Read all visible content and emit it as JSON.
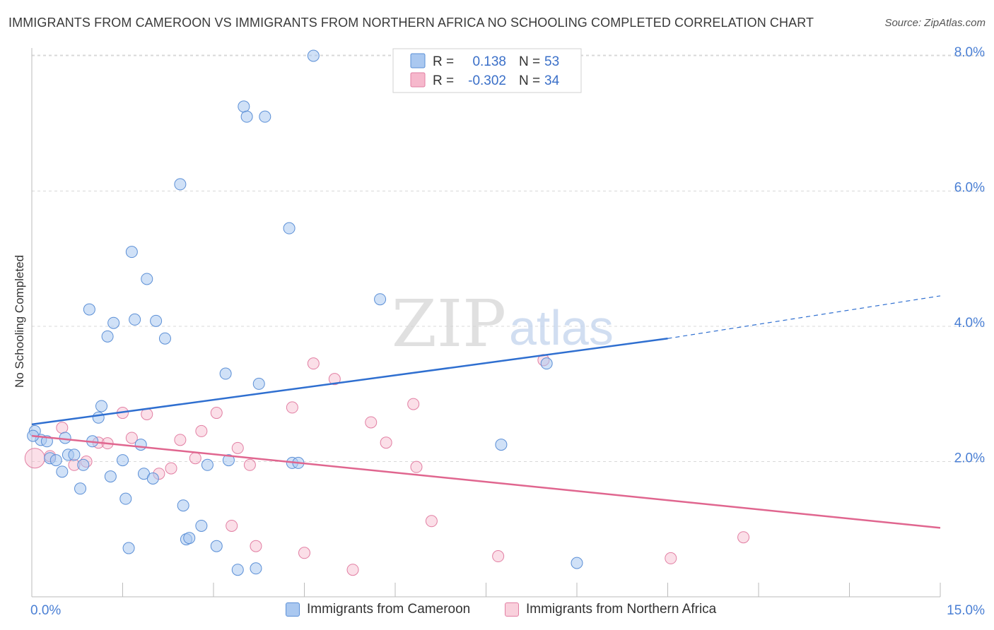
{
  "title": "IMMIGRANTS FROM CAMEROON VS IMMIGRANTS FROM NORTHERN AFRICA NO SCHOOLING COMPLETED CORRELATION CHART",
  "source": "Source: ZipAtlas.com",
  "watermark": {
    "zip": "ZIP",
    "atlas": "atlas"
  },
  "colors": {
    "blue_fill": "#aac8f0",
    "blue_stroke": "#5b8fd6",
    "blue_line": "#2f6fd0",
    "pink_fill": "#f6b8cc",
    "pink_stroke": "#e27fa3",
    "pink_line": "#e0668f",
    "axis_text": "#4a7fd4",
    "grid": "#d8d8d8"
  },
  "legend": {
    "rows": [
      {
        "r_label": "R =",
        "r_value": "0.138",
        "n_label": "N =",
        "n_value": "53"
      },
      {
        "r_label": "R =",
        "r_value": "-0.302",
        "n_label": "N =",
        "n_value": "34"
      }
    ]
  },
  "chart_data": {
    "type": "scatter",
    "title": "IMMIGRANTS FROM CAMEROON VS IMMIGRANTS FROM NORTHERN AFRICA NO SCHOOLING COMPLETED CORRELATION CHART",
    "xlabel": "",
    "ylabel": "No Schooling Completed",
    "xlim": [
      0,
      15
    ],
    "ylim": [
      0,
      8.3
    ],
    "x_tick_labels": [
      "0.0%",
      "15.0%"
    ],
    "y_ticks": [
      2,
      4,
      6,
      8
    ],
    "y_tick_labels": [
      "2.0%",
      "4.0%",
      "6.0%",
      "8.0%"
    ],
    "grid": true,
    "legend_position": "top-center",
    "series": [
      {
        "name": "Immigrants from Cameroon",
        "color": "#aac8f0",
        "points": [
          [
            0.05,
            2.45
          ],
          [
            0.15,
            2.32
          ],
          [
            0.25,
            2.3
          ],
          [
            0.3,
            2.05
          ],
          [
            0.4,
            2.02
          ],
          [
            0.5,
            1.85
          ],
          [
            0.55,
            2.35
          ],
          [
            0.6,
            2.1
          ],
          [
            0.7,
            2.1
          ],
          [
            0.8,
            1.6
          ],
          [
            0.85,
            1.95
          ],
          [
            0.95,
            4.25
          ],
          [
            1.0,
            2.3
          ],
          [
            1.1,
            2.65
          ],
          [
            1.15,
            2.82
          ],
          [
            1.25,
            3.85
          ],
          [
            1.3,
            1.78
          ],
          [
            1.35,
            4.05
          ],
          [
            1.5,
            2.02
          ],
          [
            1.55,
            1.45
          ],
          [
            1.6,
            0.72
          ],
          [
            1.65,
            5.1
          ],
          [
            1.7,
            4.1
          ],
          [
            1.8,
            2.25
          ],
          [
            1.85,
            1.82
          ],
          [
            1.9,
            4.7
          ],
          [
            2.0,
            1.75
          ],
          [
            2.05,
            4.08
          ],
          [
            2.2,
            3.82
          ],
          [
            2.45,
            6.1
          ],
          [
            2.5,
            1.35
          ],
          [
            2.55,
            0.85
          ],
          [
            2.6,
            0.87
          ],
          [
            2.8,
            1.05
          ],
          [
            2.9,
            1.95
          ],
          [
            3.05,
            0.75
          ],
          [
            3.2,
            3.3
          ],
          [
            3.25,
            2.02
          ],
          [
            3.4,
            0.4
          ],
          [
            3.5,
            7.25
          ],
          [
            3.55,
            7.1
          ],
          [
            3.7,
            0.42
          ],
          [
            3.75,
            3.15
          ],
          [
            3.85,
            7.1
          ],
          [
            4.25,
            5.45
          ],
          [
            4.3,
            1.98
          ],
          [
            4.4,
            1.98
          ],
          [
            4.65,
            8.0
          ],
          [
            5.75,
            4.4
          ],
          [
            7.75,
            2.25
          ],
          [
            8.5,
            3.45
          ],
          [
            9.0,
            0.5
          ],
          [
            0.02,
            2.38
          ]
        ],
        "trend": {
          "x0": 0,
          "y0": 2.55,
          "x1": 10.5,
          "y1": 3.82,
          "dashed_to_x": 15,
          "dashed_to_y": 4.45
        }
      },
      {
        "name": "Immigrants from Northern Africa",
        "color": "#f6b8cc",
        "points": [
          [
            0.05,
            2.05
          ],
          [
            0.3,
            2.08
          ],
          [
            0.5,
            2.5
          ],
          [
            0.7,
            1.95
          ],
          [
            0.9,
            2.0
          ],
          [
            1.1,
            2.28
          ],
          [
            1.25,
            2.27
          ],
          [
            1.5,
            2.72
          ],
          [
            1.65,
            2.35
          ],
          [
            1.9,
            2.7
          ],
          [
            2.1,
            1.82
          ],
          [
            2.3,
            1.9
          ],
          [
            2.45,
            2.32
          ],
          [
            2.7,
            2.05
          ],
          [
            2.8,
            2.45
          ],
          [
            3.05,
            2.72
          ],
          [
            3.3,
            1.05
          ],
          [
            3.4,
            2.2
          ],
          [
            3.6,
            1.95
          ],
          [
            3.7,
            0.75
          ],
          [
            4.3,
            2.8
          ],
          [
            4.5,
            0.65
          ],
          [
            4.65,
            3.45
          ],
          [
            5.0,
            3.22
          ],
          [
            5.3,
            0.4
          ],
          [
            5.6,
            2.58
          ],
          [
            5.85,
            2.28
          ],
          [
            6.3,
            2.85
          ],
          [
            6.35,
            1.92
          ],
          [
            6.6,
            1.12
          ],
          [
            7.7,
            0.6
          ],
          [
            8.45,
            3.5
          ],
          [
            10.55,
            0.57
          ],
          [
            11.75,
            0.88
          ]
        ],
        "trend": {
          "x0": 0,
          "y0": 2.38,
          "x1": 15,
          "y1": 1.02
        }
      }
    ]
  }
}
